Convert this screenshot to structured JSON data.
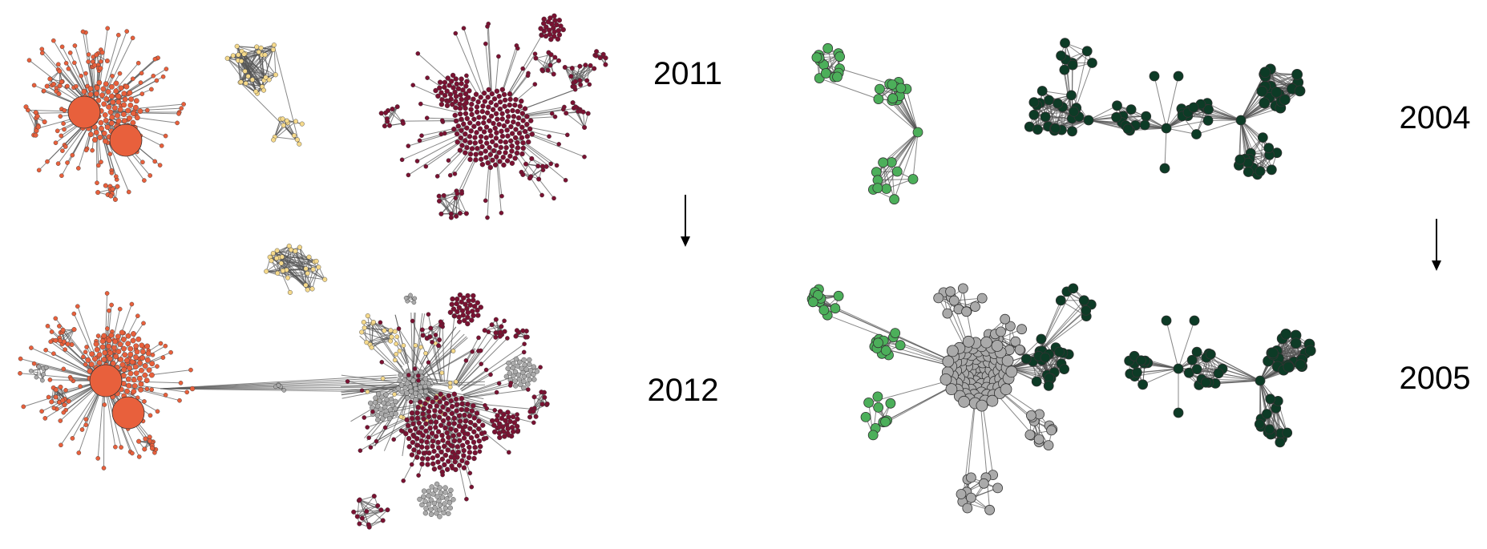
{
  "panels": [
    {
      "id": "left",
      "years": {
        "before": "2011",
        "after": "2012"
      }
    },
    {
      "id": "right",
      "years": {
        "before": "2004",
        "after": "2005"
      }
    }
  ],
  "colors": {
    "orange": "#e8603c",
    "yellow": "#f5d98b",
    "maroon": "#7a1232",
    "grey": "#aaaaaa",
    "light_green": "#4caf5a",
    "dark_green": "#0d3b26",
    "edge": "#555555"
  },
  "icons": [
    "down-arrow-icon"
  ]
}
